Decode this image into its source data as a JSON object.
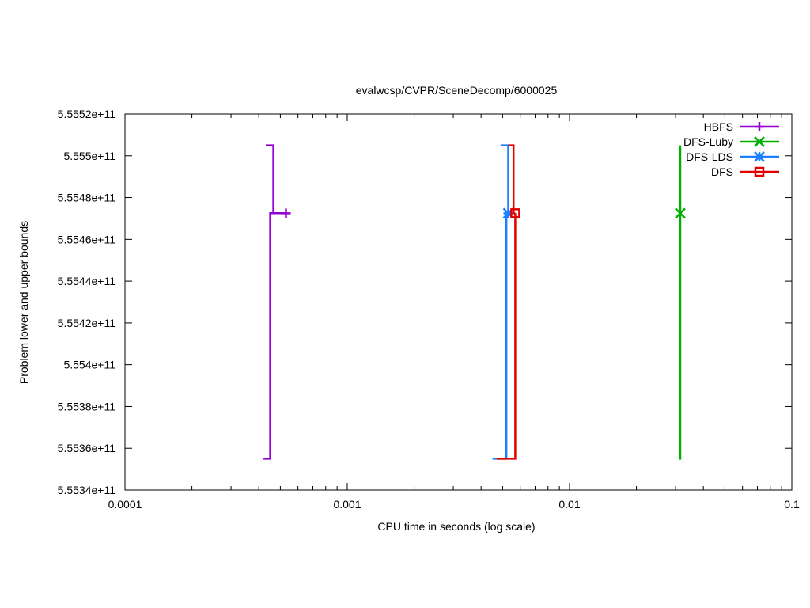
{
  "chart_data": {
    "type": "line",
    "title": "evalwcsp/CVPR/SceneDecomp/6000025",
    "xlabel": "CPU time in seconds (log scale)",
    "ylabel": "Problem lower and upper bounds",
    "x_scale": "log",
    "xlim": [
      0.0001,
      0.1
    ],
    "ylim": [
      555340000000,
      555520000000
    ],
    "x_ticks": [
      0.0001,
      0.001,
      0.01,
      0.1
    ],
    "x_tick_labels": [
      "0.0001",
      "0.001",
      "0.01",
      "0.1"
    ],
    "y_ticks": [
      555340000000,
      555360000000,
      555380000000,
      555400000000,
      555420000000,
      555440000000,
      555460000000,
      555480000000,
      555500000000,
      555520000000
    ],
    "y_tick_labels": [
      "5.5534e+11",
      "5.5536e+11",
      "5.5538e+11",
      "5.554e+11",
      "5.5542e+11",
      "5.5544e+11",
      "5.5546e+11",
      "5.5548e+11",
      "5.555e+11",
      "5.5552e+11"
    ],
    "grid": false,
    "legend_position": "top-right",
    "series": [
      {
        "name": "HBFS",
        "color": "#9400d3",
        "marker": "plus",
        "upper": [
          [
            0.00043,
            555505000000
          ],
          [
            0.000465,
            555505000000
          ],
          [
            0.000465,
            555472500000
          ],
          [
            0.00053,
            555472500000
          ]
        ],
        "lower": [
          [
            0.00042,
            555355000000
          ],
          [
            0.00045,
            555355000000
          ],
          [
            0.00045,
            555472500000
          ],
          [
            0.000465,
            555472500000
          ]
        ],
        "point": [
          0.00053,
          555472500000
        ]
      },
      {
        "name": "DFS-Luby",
        "color": "#00b000",
        "marker": "x",
        "upper": [
          [
            0.0315,
            555505000000
          ],
          [
            0.0315,
            555472500000
          ]
        ],
        "lower": [
          [
            0.031,
            555355000000
          ],
          [
            0.0315,
            555355000000
          ],
          [
            0.0315,
            555472500000
          ]
        ],
        "point": [
          0.0315,
          555472500000
        ]
      },
      {
        "name": "DFS-LDS",
        "color": "#1e7fff",
        "marker": "star",
        "upper": [
          [
            0.0049,
            555505000000
          ],
          [
            0.0053,
            555505000000
          ],
          [
            0.0053,
            555472500000
          ]
        ],
        "lower": [
          [
            0.0045,
            555355000000
          ],
          [
            0.0052,
            555355000000
          ],
          [
            0.0052,
            555472500000
          ]
        ],
        "point": [
          0.0053,
          555472500000
        ]
      },
      {
        "name": "DFS",
        "color": "#e00000",
        "marker": "square",
        "upper": [
          [
            0.0053,
            555505000000
          ],
          [
            0.0056,
            555505000000
          ],
          [
            0.0056,
            555472500000
          ],
          [
            0.0057,
            555472500000
          ]
        ],
        "lower": [
          [
            0.0047,
            555355000000
          ],
          [
            0.0057,
            555355000000
          ],
          [
            0.0057,
            555472500000
          ]
        ],
        "point": [
          0.0057,
          555472500000
        ]
      }
    ]
  }
}
